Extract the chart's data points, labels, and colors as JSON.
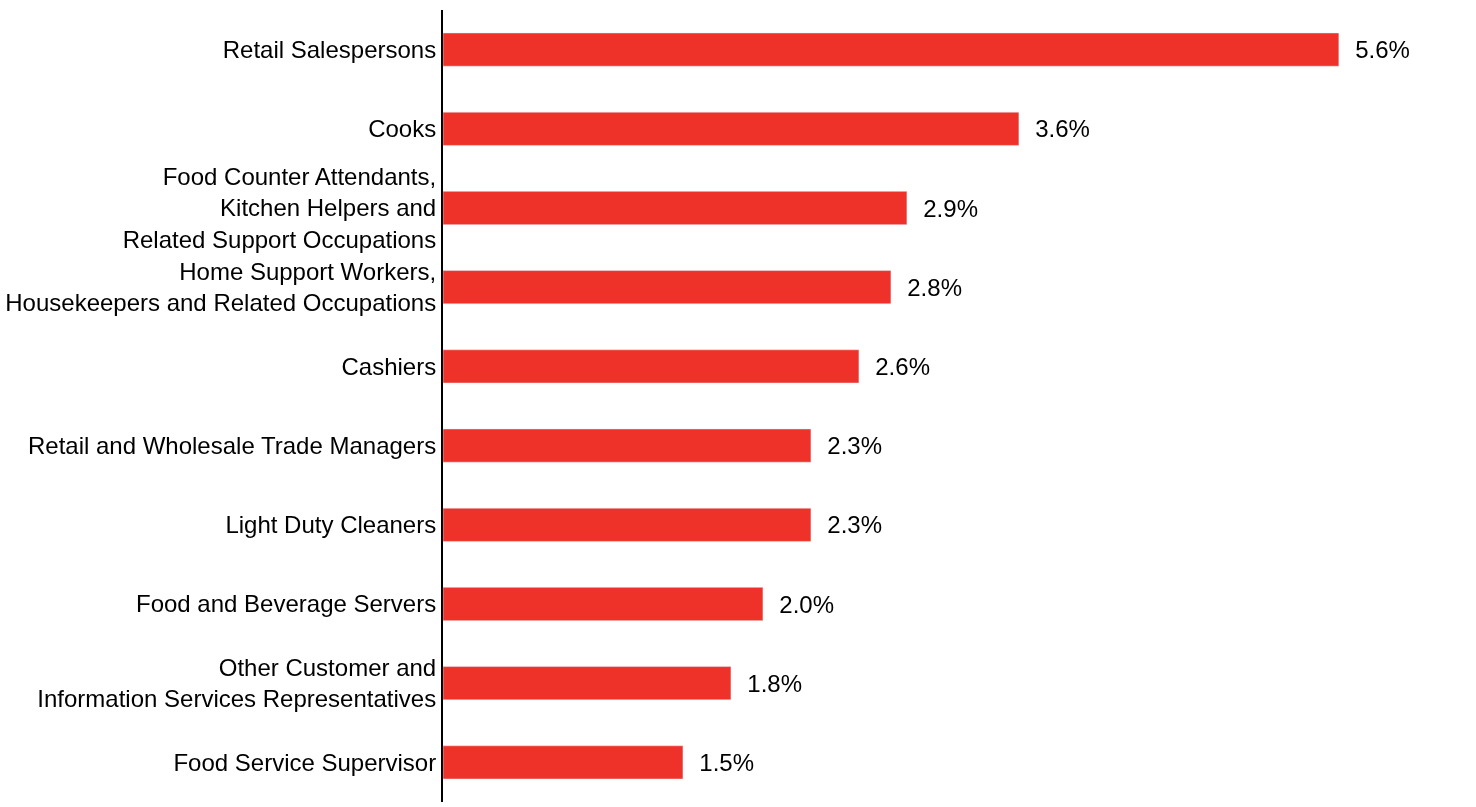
{
  "chart_data": {
    "type": "bar",
    "orientation": "horizontal",
    "categories": [
      "Retail Salespersons",
      "Cooks",
      "Food Counter Attendants,\nKitchen Helpers and\nRelated Support Occupations",
      "Home Support Workers,\nHousekeepers and Related Occupations",
      "Cashiers",
      "Retail and Wholesale Trade Managers",
      "Light Duty Cleaners",
      "Food and Beverage Servers",
      "Other Customer and\nInformation Services Representatives",
      "Food Service Supervisor"
    ],
    "values": [
      5.6,
      3.6,
      2.9,
      2.8,
      2.6,
      2.3,
      2.3,
      2.0,
      1.8,
      1.5
    ],
    "value_labels": [
      "5.6%",
      "3.6%",
      "2.9%",
      "2.8%",
      "2.6%",
      "2.3%",
      "2.3%",
      "2.0%",
      "1.8%",
      "1.5%"
    ],
    "color": "#ef3229",
    "legend": false
  }
}
